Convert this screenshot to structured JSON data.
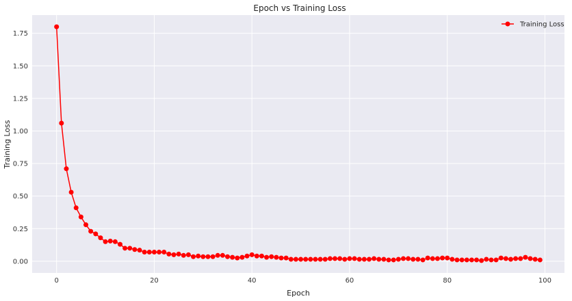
{
  "chart_data": {
    "type": "line",
    "title": "Epoch vs Training Loss",
    "xlabel": "Epoch",
    "ylabel": "Training Loss",
    "xlim": [
      -5,
      104
    ],
    "ylim": [
      -0.09,
      1.89
    ],
    "xticks": [
      0,
      20,
      40,
      60,
      80,
      100
    ],
    "yticks": [
      0.0,
      0.25,
      0.5,
      0.75,
      1.0,
      1.25,
      1.5,
      1.75
    ],
    "ytick_labels": [
      "0.00",
      "0.25",
      "0.50",
      "0.75",
      "1.00",
      "1.25",
      "1.50",
      "1.75"
    ],
    "grid": true,
    "legend_position": "top-right",
    "series": [
      {
        "name": "Training Loss",
        "color": "#ff0000",
        "marker": "circle",
        "x": [
          0,
          1,
          2,
          3,
          4,
          5,
          6,
          7,
          8,
          9,
          10,
          11,
          12,
          13,
          14,
          15,
          16,
          17,
          18,
          19,
          20,
          21,
          22,
          23,
          24,
          25,
          26,
          27,
          28,
          29,
          30,
          31,
          32,
          33,
          34,
          35,
          36,
          37,
          38,
          39,
          40,
          41,
          42,
          43,
          44,
          45,
          46,
          47,
          48,
          49,
          50,
          51,
          52,
          53,
          54,
          55,
          56,
          57,
          58,
          59,
          60,
          61,
          62,
          63,
          64,
          65,
          66,
          67,
          68,
          69,
          70,
          71,
          72,
          73,
          74,
          75,
          76,
          77,
          78,
          79,
          80,
          81,
          82,
          83,
          84,
          85,
          86,
          87,
          88,
          89,
          90,
          91,
          92,
          93,
          94,
          95,
          96,
          97,
          98,
          99
        ],
        "y": [
          1.8,
          1.06,
          0.71,
          0.53,
          0.41,
          0.34,
          0.28,
          0.23,
          0.21,
          0.18,
          0.15,
          0.155,
          0.15,
          0.13,
          0.1,
          0.1,
          0.09,
          0.085,
          0.07,
          0.07,
          0.07,
          0.07,
          0.07,
          0.055,
          0.05,
          0.055,
          0.045,
          0.05,
          0.035,
          0.04,
          0.035,
          0.035,
          0.035,
          0.045,
          0.045,
          0.035,
          0.03,
          0.025,
          0.03,
          0.04,
          0.05,
          0.04,
          0.04,
          0.03,
          0.035,
          0.03,
          0.025,
          0.025,
          0.015,
          0.015,
          0.015,
          0.015,
          0.015,
          0.015,
          0.015,
          0.015,
          0.02,
          0.02,
          0.02,
          0.015,
          0.02,
          0.02,
          0.015,
          0.015,
          0.015,
          0.02,
          0.015,
          0.015,
          0.01,
          0.01,
          0.015,
          0.02,
          0.02,
          0.015,
          0.015,
          0.01,
          0.025,
          0.02,
          0.02,
          0.025,
          0.025,
          0.015,
          0.01,
          0.01,
          0.01,
          0.01,
          0.01,
          0.005,
          0.015,
          0.01,
          0.01,
          0.025,
          0.02,
          0.015,
          0.02,
          0.02,
          0.03,
          0.02,
          0.015,
          0.01
        ]
      }
    ]
  }
}
